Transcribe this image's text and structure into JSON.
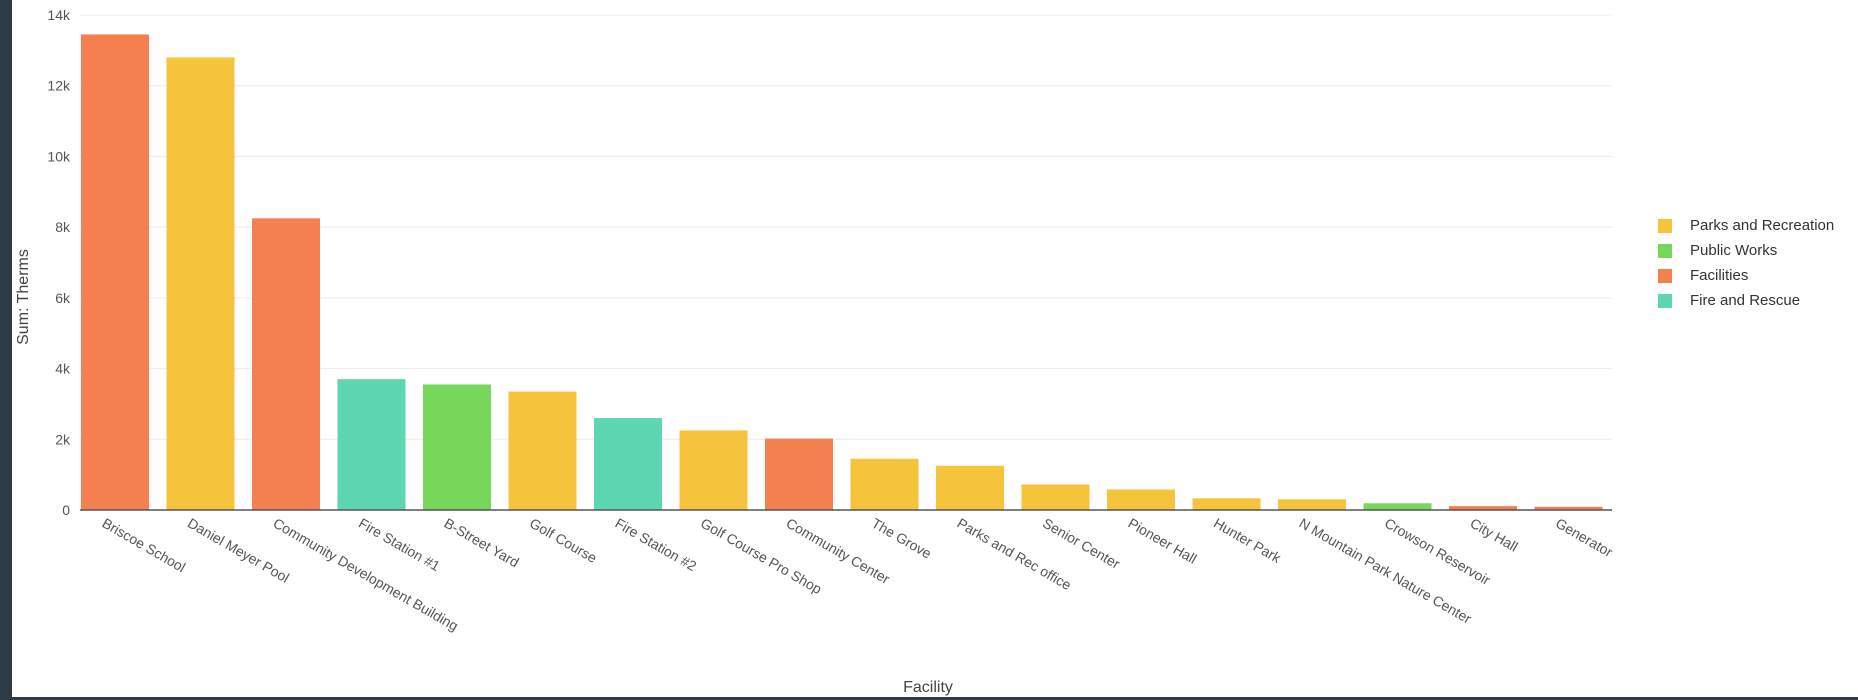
{
  "chart_data": {
    "type": "bar",
    "xlabel": "Facility",
    "ylabel": "Sum: Therms",
    "ylim": [
      0,
      14000
    ],
    "yticks": [
      {
        "value": 0,
        "label": "0"
      },
      {
        "value": 2000,
        "label": "2k"
      },
      {
        "value": 4000,
        "label": "4k"
      },
      {
        "value": 6000,
        "label": "6k"
      },
      {
        "value": 8000,
        "label": "8k"
      },
      {
        "value": 10000,
        "label": "10k"
      },
      {
        "value": 12000,
        "label": "12k"
      },
      {
        "value": 14000,
        "label": "14k"
      }
    ],
    "grid": true,
    "legend_position": "right",
    "legend": [
      {
        "name": "Parks and Recreation",
        "color": "#f5c43c"
      },
      {
        "name": "Public Works",
        "color": "#76d75b"
      },
      {
        "name": "Facilities",
        "color": "#f47f4f"
      },
      {
        "name": "Fire and Rescue",
        "color": "#5fd6b2"
      }
    ],
    "categories": [
      "Briscoe School",
      "Daniel Meyer Pool",
      "Community Development Building",
      "Fire Station #1",
      "B-Street Yard",
      "Golf Course",
      "Fire Station #2",
      "Golf Course Pro Shop",
      "Community Center",
      "The Grove",
      "Parks and Rec office",
      "Senior Center",
      "Pioneer Hall",
      "Hunter Park",
      "N Mountain Park Nature Center",
      "Crowson Reservoir",
      "City Hall",
      "Generator"
    ],
    "values": [
      13450,
      12800,
      8250,
      3700,
      3550,
      3350,
      2600,
      2250,
      2020,
      1450,
      1250,
      720,
      580,
      330,
      300,
      190,
      110,
      90
    ],
    "groups": [
      "Facilities",
      "Parks and Recreation",
      "Facilities",
      "Fire and Rescue",
      "Public Works",
      "Parks and Recreation",
      "Fire and Rescue",
      "Parks and Recreation",
      "Facilities",
      "Parks and Recreation",
      "Parks and Recreation",
      "Parks and Recreation",
      "Parks and Recreation",
      "Parks and Recreation",
      "Parks and Recreation",
      "Public Works",
      "Facilities",
      "Facilities"
    ]
  }
}
